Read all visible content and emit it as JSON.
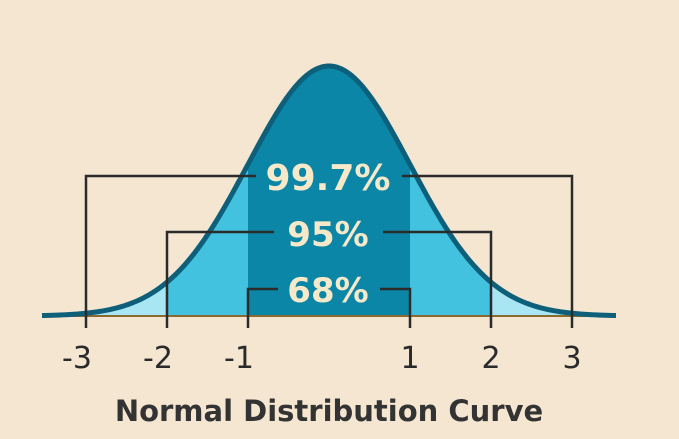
{
  "diagram": {
    "title": "Normal Distribution Curve",
    "colors": {
      "background": "#f4e6d1",
      "outline": "#0d5f7a",
      "band_1sd": "#0b86a6",
      "band_2sd": "#43c2e0",
      "band_3sd": "#a8e6f3",
      "baseline": "#8a6a2e",
      "bracket": "#2b2b2b",
      "percent_text": "#f6e9c9"
    },
    "intervals": [
      {
        "label": "99.7%",
        "sd": 3
      },
      {
        "label": "95%",
        "sd": 2
      },
      {
        "label": "68%",
        "sd": 1
      }
    ],
    "ticks": [
      "-3",
      "-2",
      "-1",
      "1",
      "2",
      "3"
    ]
  }
}
